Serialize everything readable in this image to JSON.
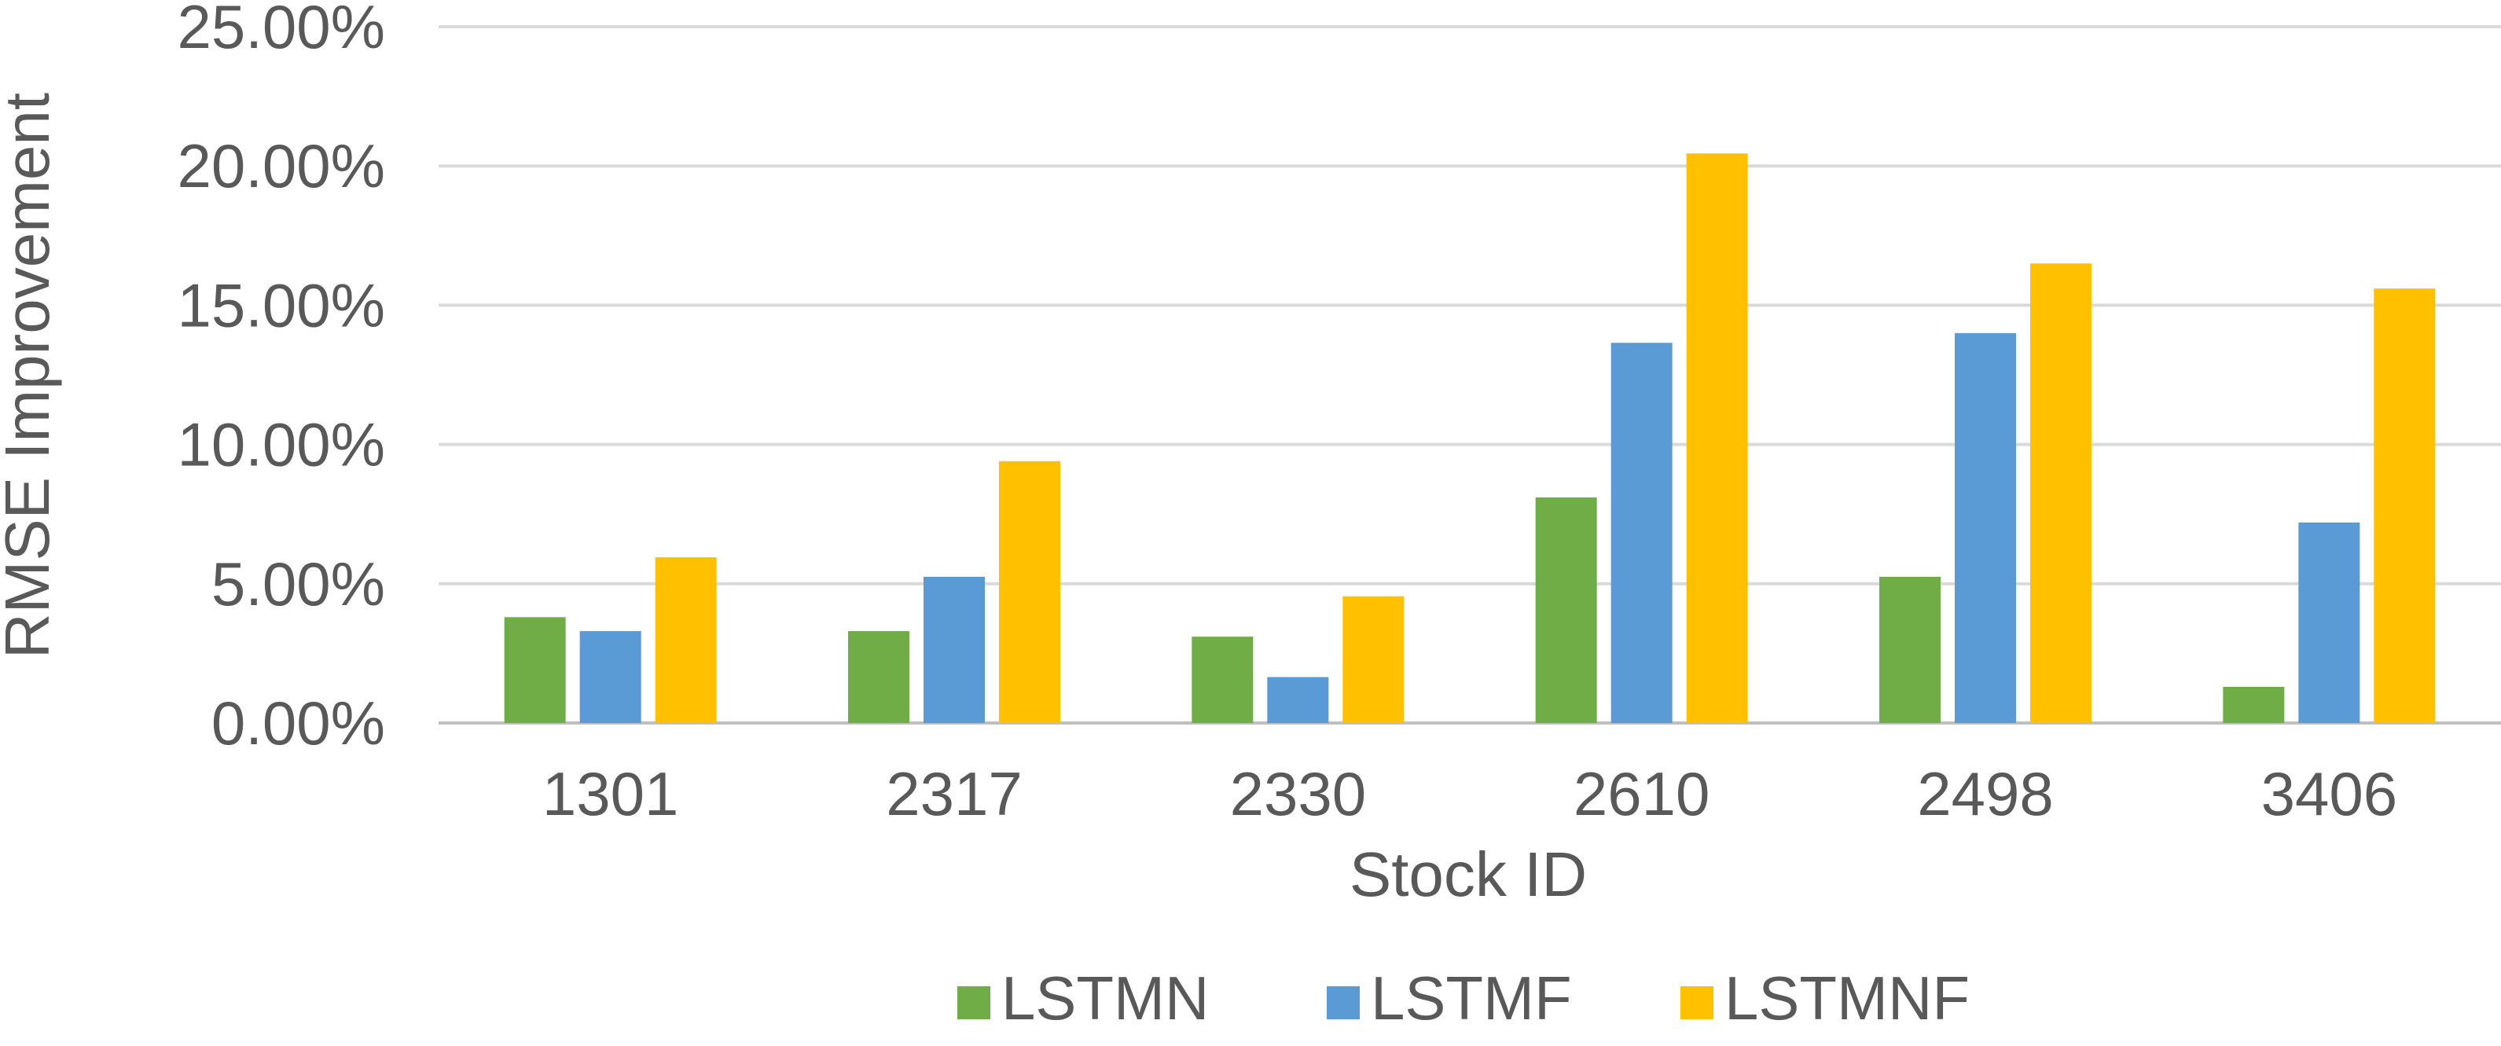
{
  "chart_data": {
    "type": "bar",
    "xlabel": "Stock ID",
    "ylabel": "RMSE Improvement",
    "categories": [
      "1301",
      "2317",
      "2330",
      "2610",
      "2498",
      "3406"
    ],
    "series": [
      {
        "name": "LSTMN",
        "color": "#70ad47",
        "values": [
          3.8,
          3.3,
          3.1,
          8.1,
          5.25,
          1.3
        ]
      },
      {
        "name": "LSTMF",
        "color": "#5b9bd5",
        "values": [
          3.3,
          5.25,
          1.65,
          13.65,
          14.0,
          7.2
        ]
      },
      {
        "name": "LSTMNF",
        "color": "#ffc000",
        "values": [
          5.95,
          9.4,
          4.55,
          20.45,
          16.5,
          15.6
        ]
      }
    ],
    "ylim": [
      0,
      25
    ],
    "yticks": [
      "0.00%",
      "5.00%",
      "10.00%",
      "15.00%",
      "20.00%",
      "25.00%"
    ],
    "grid": true,
    "legend_position": "bottom"
  }
}
